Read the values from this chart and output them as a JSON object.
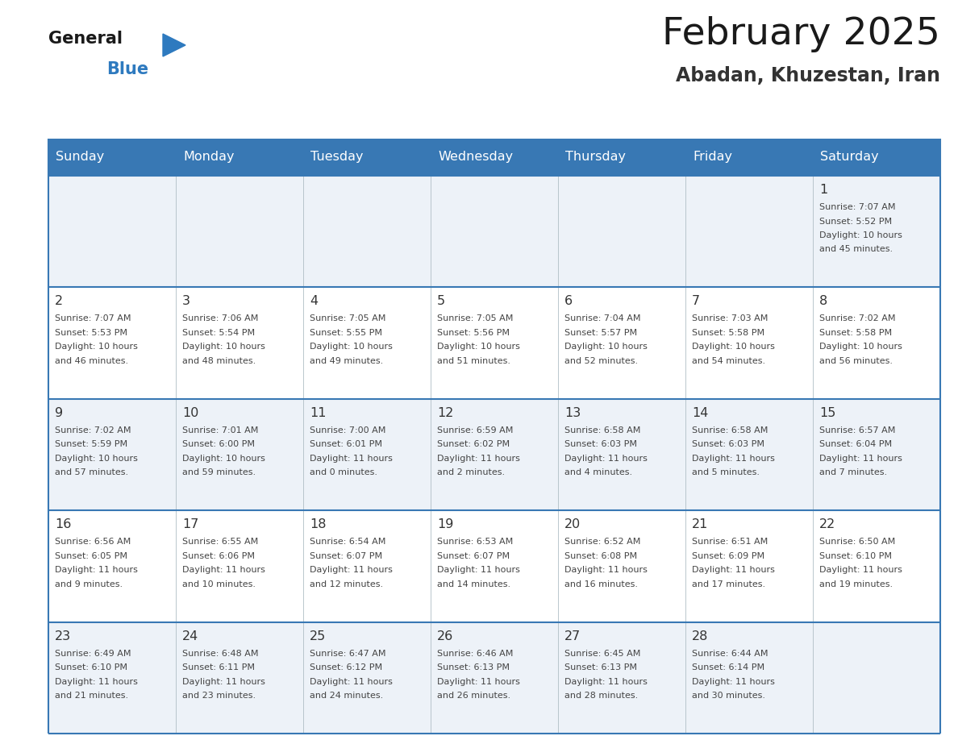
{
  "title": "February 2025",
  "subtitle": "Abadan, Khuzestan, Iran",
  "days_of_week": [
    "Sunday",
    "Monday",
    "Tuesday",
    "Wednesday",
    "Thursday",
    "Friday",
    "Saturday"
  ],
  "header_bg": "#3878b4",
  "header_text": "#ffffff",
  "cell_bg_odd": "#edf2f8",
  "cell_bg_even": "#ffffff",
  "border_color": "#3878b4",
  "day_number_color": "#333333",
  "text_color": "#444444",
  "title_color": "#1a1a1a",
  "subtitle_color": "#333333",
  "logo_general_color": "#1a1a1a",
  "logo_blue_color": "#2e7abf",
  "calendar": [
    [
      null,
      null,
      null,
      null,
      null,
      null,
      {
        "day": "1",
        "sunrise": "7:07 AM",
        "sunset": "5:52 PM",
        "daylight": "10 hours and 45 minutes."
      }
    ],
    [
      {
        "day": "2",
        "sunrise": "7:07 AM",
        "sunset": "5:53 PM",
        "daylight": "10 hours and 46 minutes."
      },
      {
        "day": "3",
        "sunrise": "7:06 AM",
        "sunset": "5:54 PM",
        "daylight": "10 hours and 48 minutes."
      },
      {
        "day": "4",
        "sunrise": "7:05 AM",
        "sunset": "5:55 PM",
        "daylight": "10 hours and 49 minutes."
      },
      {
        "day": "5",
        "sunrise": "7:05 AM",
        "sunset": "5:56 PM",
        "daylight": "10 hours and 51 minutes."
      },
      {
        "day": "6",
        "sunrise": "7:04 AM",
        "sunset": "5:57 PM",
        "daylight": "10 hours and 52 minutes."
      },
      {
        "day": "7",
        "sunrise": "7:03 AM",
        "sunset": "5:58 PM",
        "daylight": "10 hours and 54 minutes."
      },
      {
        "day": "8",
        "sunrise": "7:02 AM",
        "sunset": "5:58 PM",
        "daylight": "10 hours and 56 minutes."
      }
    ],
    [
      {
        "day": "9",
        "sunrise": "7:02 AM",
        "sunset": "5:59 PM",
        "daylight": "10 hours and 57 minutes."
      },
      {
        "day": "10",
        "sunrise": "7:01 AM",
        "sunset": "6:00 PM",
        "daylight": "10 hours and 59 minutes."
      },
      {
        "day": "11",
        "sunrise": "7:00 AM",
        "sunset": "6:01 PM",
        "daylight": "11 hours and 0 minutes."
      },
      {
        "day": "12",
        "sunrise": "6:59 AM",
        "sunset": "6:02 PM",
        "daylight": "11 hours and 2 minutes."
      },
      {
        "day": "13",
        "sunrise": "6:58 AM",
        "sunset": "6:03 PM",
        "daylight": "11 hours and 4 minutes."
      },
      {
        "day": "14",
        "sunrise": "6:58 AM",
        "sunset": "6:03 PM",
        "daylight": "11 hours and 5 minutes."
      },
      {
        "day": "15",
        "sunrise": "6:57 AM",
        "sunset": "6:04 PM",
        "daylight": "11 hours and 7 minutes."
      }
    ],
    [
      {
        "day": "16",
        "sunrise": "6:56 AM",
        "sunset": "6:05 PM",
        "daylight": "11 hours and 9 minutes."
      },
      {
        "day": "17",
        "sunrise": "6:55 AM",
        "sunset": "6:06 PM",
        "daylight": "11 hours and 10 minutes."
      },
      {
        "day": "18",
        "sunrise": "6:54 AM",
        "sunset": "6:07 PM",
        "daylight": "11 hours and 12 minutes."
      },
      {
        "day": "19",
        "sunrise": "6:53 AM",
        "sunset": "6:07 PM",
        "daylight": "11 hours and 14 minutes."
      },
      {
        "day": "20",
        "sunrise": "6:52 AM",
        "sunset": "6:08 PM",
        "daylight": "11 hours and 16 minutes."
      },
      {
        "day": "21",
        "sunrise": "6:51 AM",
        "sunset": "6:09 PM",
        "daylight": "11 hours and 17 minutes."
      },
      {
        "day": "22",
        "sunrise": "6:50 AM",
        "sunset": "6:10 PM",
        "daylight": "11 hours and 19 minutes."
      }
    ],
    [
      {
        "day": "23",
        "sunrise": "6:49 AM",
        "sunset": "6:10 PM",
        "daylight": "11 hours and 21 minutes."
      },
      {
        "day": "24",
        "sunrise": "6:48 AM",
        "sunset": "6:11 PM",
        "daylight": "11 hours and 23 minutes."
      },
      {
        "day": "25",
        "sunrise": "6:47 AM",
        "sunset": "6:12 PM",
        "daylight": "11 hours and 24 minutes."
      },
      {
        "day": "26",
        "sunrise": "6:46 AM",
        "sunset": "6:13 PM",
        "daylight": "11 hours and 26 minutes."
      },
      {
        "day": "27",
        "sunrise": "6:45 AM",
        "sunset": "6:13 PM",
        "daylight": "11 hours and 28 minutes."
      },
      {
        "day": "28",
        "sunrise": "6:44 AM",
        "sunset": "6:14 PM",
        "daylight": "11 hours and 30 minutes."
      },
      null
    ]
  ]
}
